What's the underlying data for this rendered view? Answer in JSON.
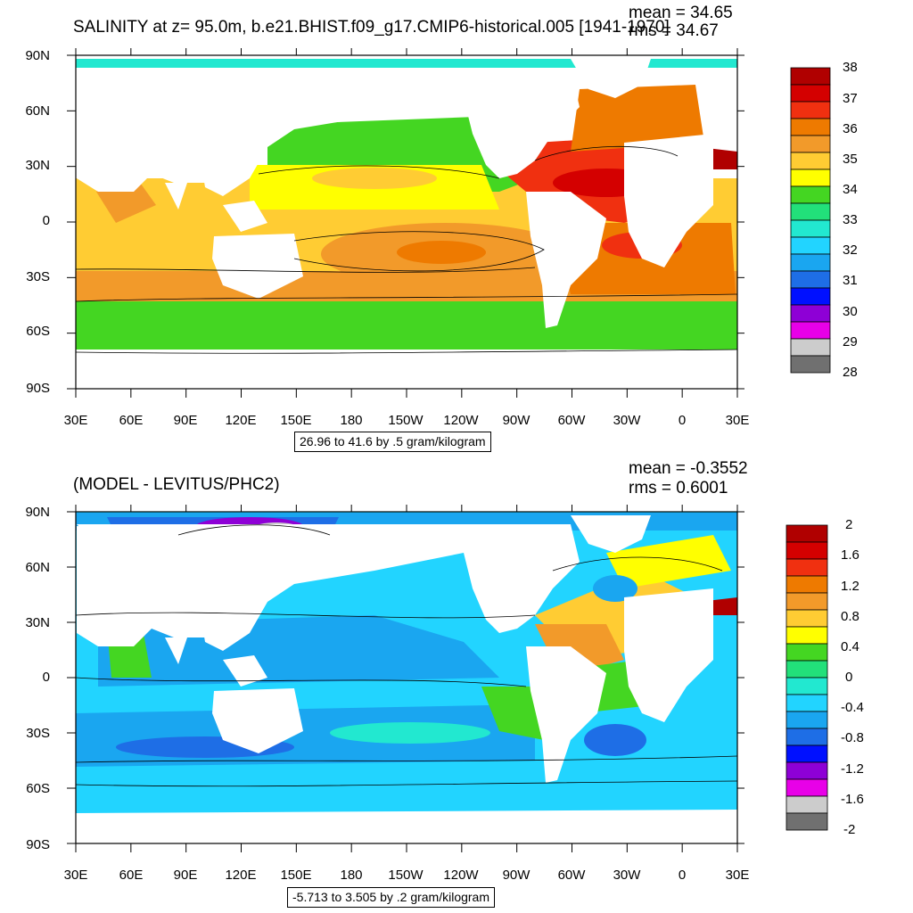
{
  "panels": [
    {
      "id": "top",
      "title": "SALINITY at z=  95.0m, b.e21.BHIST.f09_g17.CMIP6-historical.005 [1941-1970]",
      "mean_text": "mean = 34.65",
      "rms_text": "rms = 34.67",
      "info_text": "26.96 to 41.6 by .5 gram/kilogram",
      "lat_labels": [
        "90N",
        "60N",
        "30N",
        "0",
        "30S",
        "60S",
        "90S"
      ],
      "lon_labels": [
        "30E",
        "60E",
        "90E",
        "120E",
        "150E",
        "180",
        "150W",
        "120W",
        "90W",
        "60W",
        "30W",
        "0",
        "30E"
      ],
      "colorbar": {
        "labels": [
          "38",
          "37",
          "36",
          "35",
          "34",
          "33",
          "32",
          "31",
          "30",
          "29",
          "28"
        ],
        "colors": [
          "#b00000",
          "#d40000",
          "#f03010",
          "#ee7a00",
          "#f29a2a",
          "#ffcc33",
          "#ffff00",
          "#44d622",
          "#22e07a",
          "#22e8d0",
          "#22d4ff",
          "#1aa6f0",
          "#1e6ee6",
          "#0010ff",
          "#8e00d6",
          "#e800e8",
          "#cccccc",
          "#707070"
        ]
      }
    },
    {
      "id": "bottom",
      "title": "(MODEL - LEVITUS/PHC2)",
      "mean_text": "mean = -0.3552",
      "rms_text": "rms = 0.6001",
      "info_text": "-5.713 to 3.505 by .2 gram/kilogram",
      "lat_labels": [
        "90N",
        "60N",
        "30N",
        "0",
        "30S",
        "60S",
        "90S"
      ],
      "lon_labels": [
        "30E",
        "60E",
        "90E",
        "120E",
        "150E",
        "180",
        "150W",
        "120W",
        "90W",
        "60W",
        "30W",
        "0",
        "30E"
      ],
      "colorbar": {
        "labels": [
          "2",
          "1.6",
          "1.2",
          "0.8",
          "0.4",
          "0",
          "-0.4",
          "-0.8",
          "-1.2",
          "-1.6",
          "-2"
        ],
        "colors": [
          "#b00000",
          "#d40000",
          "#f03010",
          "#ee7a00",
          "#f29a2a",
          "#ffcc33",
          "#ffff00",
          "#44d622",
          "#22e07a",
          "#22e8d0",
          "#22d4ff",
          "#1aa6f0",
          "#1e6ee6",
          "#0010ff",
          "#8e00d6",
          "#e800e8",
          "#cccccc",
          "#707070"
        ]
      }
    }
  ]
}
